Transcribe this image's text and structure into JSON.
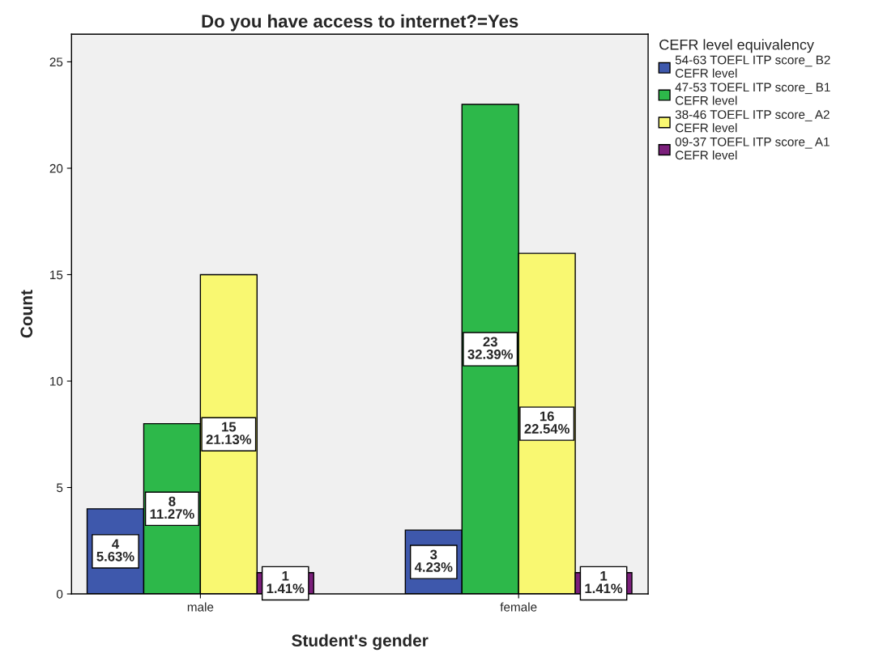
{
  "chart_data": {
    "type": "bar",
    "title": "Do you have access to internet?=Yes",
    "xlabel": "Student's gender",
    "ylabel": "Count",
    "legend_title": "CEFR level equivalency",
    "categories": [
      "male",
      "female"
    ],
    "series": [
      {
        "name": "54-63 TOEFL ITP score_ B2\nCEFR level",
        "color": "#3e58ac",
        "values": [
          4,
          3
        ],
        "value_labels": [
          "4\n5.63%",
          "3\n4.23%"
        ]
      },
      {
        "name": "47-53 TOEFL ITP score_ B1\nCEFR level",
        "color": "#2db84a",
        "values": [
          8,
          23
        ],
        "value_labels": [
          "8\n11.27%",
          "23\n32.39%"
        ]
      },
      {
        "name": "38-46 TOEFL ITP score_ A2\nCEFR level",
        "color": "#f9f871",
        "values": [
          15,
          16
        ],
        "value_labels": [
          "15\n21.13%",
          "16\n22.54%"
        ]
      },
      {
        "name": "09-37 TOEFL ITP score_ A1\nCEFR level",
        "color": "#7b1f7b",
        "values": [
          1,
          1
        ],
        "value_labels": [
          "1\n1.41%",
          "1\n1.41%"
        ]
      }
    ],
    "ylim": [
      0,
      26.3
    ],
    "yticks": [
      0,
      5,
      10,
      15,
      20,
      25
    ],
    "grid": false,
    "legend": "right"
  }
}
